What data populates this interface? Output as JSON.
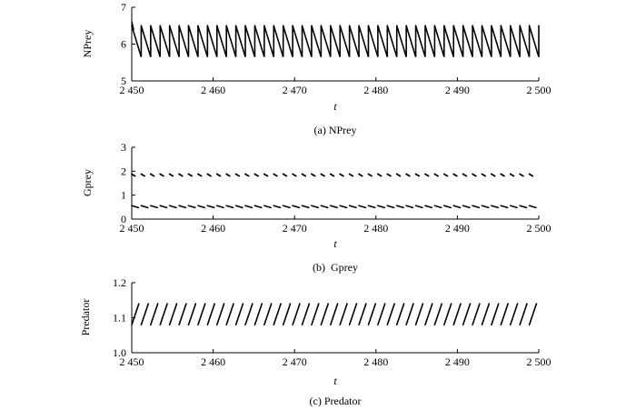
{
  "chart_data": [
    {
      "type": "line",
      "ylabel": "NPrey",
      "xlabel": "t",
      "caption": "(a) NPrey",
      "xlim": [
        2450,
        2500
      ],
      "ylim": [
        5,
        7
      ],
      "x_ticks": [
        2450,
        2460,
        2470,
        2480,
        2490,
        2500
      ],
      "x_tick_labels": [
        "2 450",
        "2 460",
        "2 470",
        "2 480",
        "2 490",
        "2 500"
      ],
      "y_ticks": [
        5,
        6,
        7
      ],
      "y_tick_labels": [
        "5",
        "6",
        "7"
      ],
      "grid": false,
      "series": [
        {
          "pattern": "sawtooth",
          "cycles": 43,
          "start": 2450,
          "end": 2500,
          "high": 6.5,
          "low": 5.65,
          "style": "solid"
        }
      ]
    },
    {
      "type": "line",
      "ylabel": "Gprey",
      "xlabel": "t",
      "caption": "(b)  Gprey",
      "xlim": [
        2450,
        2500
      ],
      "ylim": [
        0,
        3
      ],
      "x_ticks": [
        2450,
        2460,
        2470,
        2480,
        2490,
        2500
      ],
      "x_tick_labels": [
        "2 450",
        "2 460",
        "2 470",
        "2 480",
        "2 490",
        "2 500"
      ],
      "y_ticks": [
        0,
        1,
        2,
        3
      ],
      "y_tick_labels": [
        "0",
        "1",
        "2",
        "3"
      ],
      "grid": false,
      "series": [
        {
          "pattern": "dashed-band",
          "cycles": 43,
          "start": 2450,
          "end": 2500,
          "high": 1.88,
          "low": 1.8,
          "style": "dots"
        },
        {
          "pattern": "dashed-band",
          "cycles": 43,
          "start": 2450,
          "end": 2500,
          "high": 0.56,
          "low": 0.48,
          "style": "dashes"
        }
      ]
    },
    {
      "type": "line",
      "ylabel": "Predator",
      "xlabel": "t",
      "caption": "(c) Predator",
      "xlim": [
        2450,
        2500
      ],
      "ylim": [
        1.0,
        1.2
      ],
      "x_ticks": [
        2450,
        2460,
        2470,
        2480,
        2490,
        2500
      ],
      "x_tick_labels": [
        "2 450",
        "2 460",
        "2 470",
        "2 480",
        "2 490",
        "2 500"
      ],
      "y_ticks": [
        1.0,
        1.1,
        1.2
      ],
      "y_tick_labels": [
        "1.0",
        "1.1",
        "1.2"
      ],
      "grid": false,
      "series": [
        {
          "pattern": "slants",
          "cycles": 43,
          "start": 2450,
          "end": 2500,
          "high": 1.14,
          "low": 1.08,
          "style": "solid"
        }
      ]
    }
  ]
}
